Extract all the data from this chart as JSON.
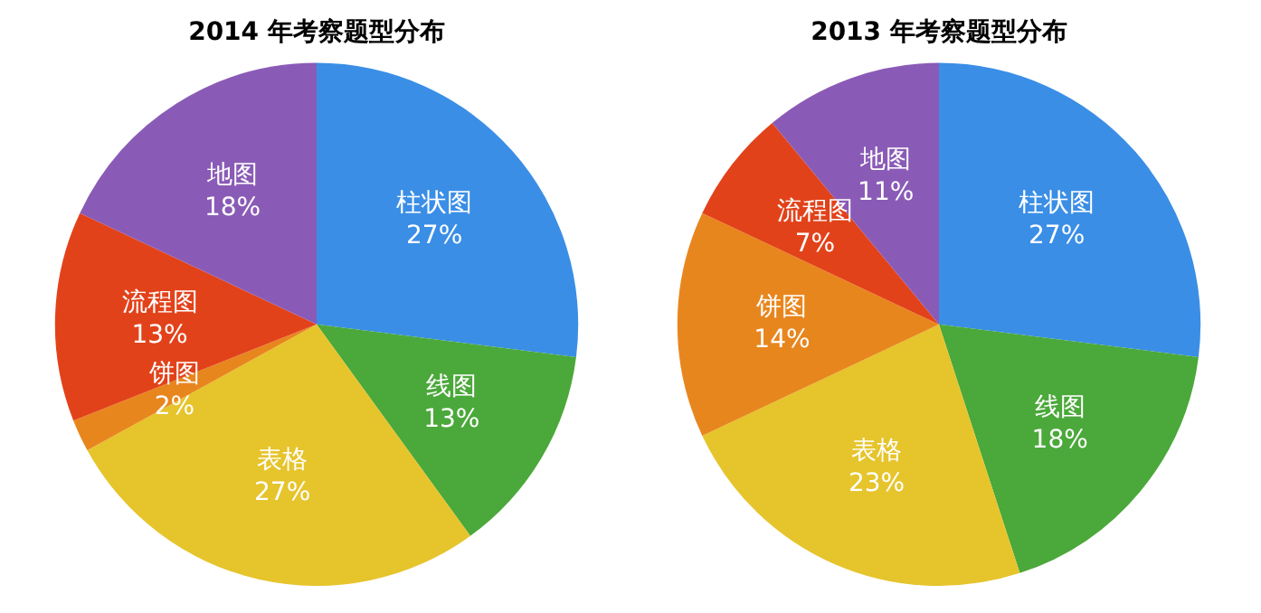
{
  "chart_data": [
    {
      "type": "pie",
      "title": "2014 年考察题型分布",
      "categories": [
        "柱状图",
        "线图",
        "表格",
        "饼图",
        "流程图",
        "地图"
      ],
      "values": [
        27,
        13,
        27,
        2,
        13,
        18
      ],
      "value_labels": [
        "27%",
        "13%",
        "27%",
        "2%",
        "13%",
        "18%"
      ],
      "colors": [
        "#3a8ee6",
        "#4ba83a",
        "#e6c42c",
        "#e8861e",
        "#e2421a",
        "#8a5bb6"
      ],
      "legend": false
    },
    {
      "type": "pie",
      "title": "2013 年考察题型分布",
      "categories": [
        "柱状图",
        "线图",
        "表格",
        "饼图",
        "流程图",
        "地图"
      ],
      "values": [
        27,
        18,
        23,
        14,
        7,
        11
      ],
      "value_labels": [
        "27%",
        "18%",
        "23%",
        "14%",
        "7%",
        "11%"
      ],
      "colors": [
        "#3a8ee6",
        "#4ba83a",
        "#e6c42c",
        "#e8861e",
        "#e2421a",
        "#8a5bb6"
      ],
      "legend": false
    }
  ]
}
